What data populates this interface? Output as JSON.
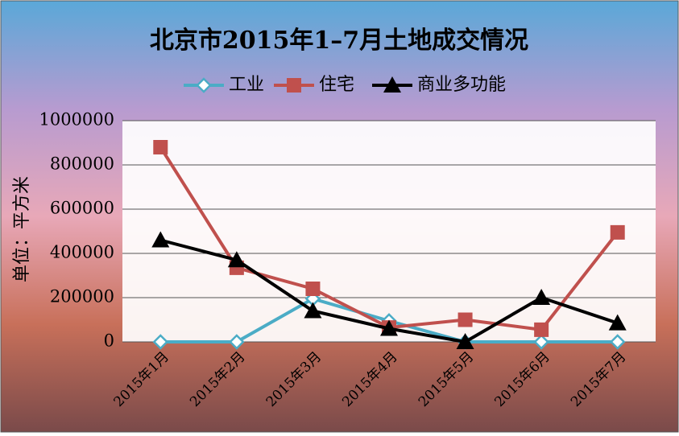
{
  "chart_data": {
    "type": "line",
    "title": "北京市2015年1–7月土地成交情况",
    "y_label": "单位：平方米",
    "categories": [
      "2015年1月",
      "2015年2月",
      "2015年3月",
      "2015年4月",
      "2015年5月",
      "2015年6月",
      "2015年7月"
    ],
    "series": [
      {
        "name": "工业",
        "color": "#4bacc6",
        "marker": "diamond",
        "values": [
          0,
          0,
          195000,
          95000,
          0,
          0,
          0
        ]
      },
      {
        "name": "住宅",
        "color": "#c0504d",
        "marker": "square",
        "values": [
          880000,
          335000,
          240000,
          65000,
          100000,
          55000,
          495000
        ]
      },
      {
        "name": "商业多功能",
        "color": "#000000",
        "marker": "triangle",
        "values": [
          460000,
          370000,
          140000,
          60000,
          0,
          200000,
          85000
        ]
      }
    ],
    "ylim": [
      0,
      1000000
    ],
    "yticks": [
      0,
      200000,
      400000,
      600000,
      800000,
      1000000
    ],
    "grid": true,
    "legend": "top"
  }
}
